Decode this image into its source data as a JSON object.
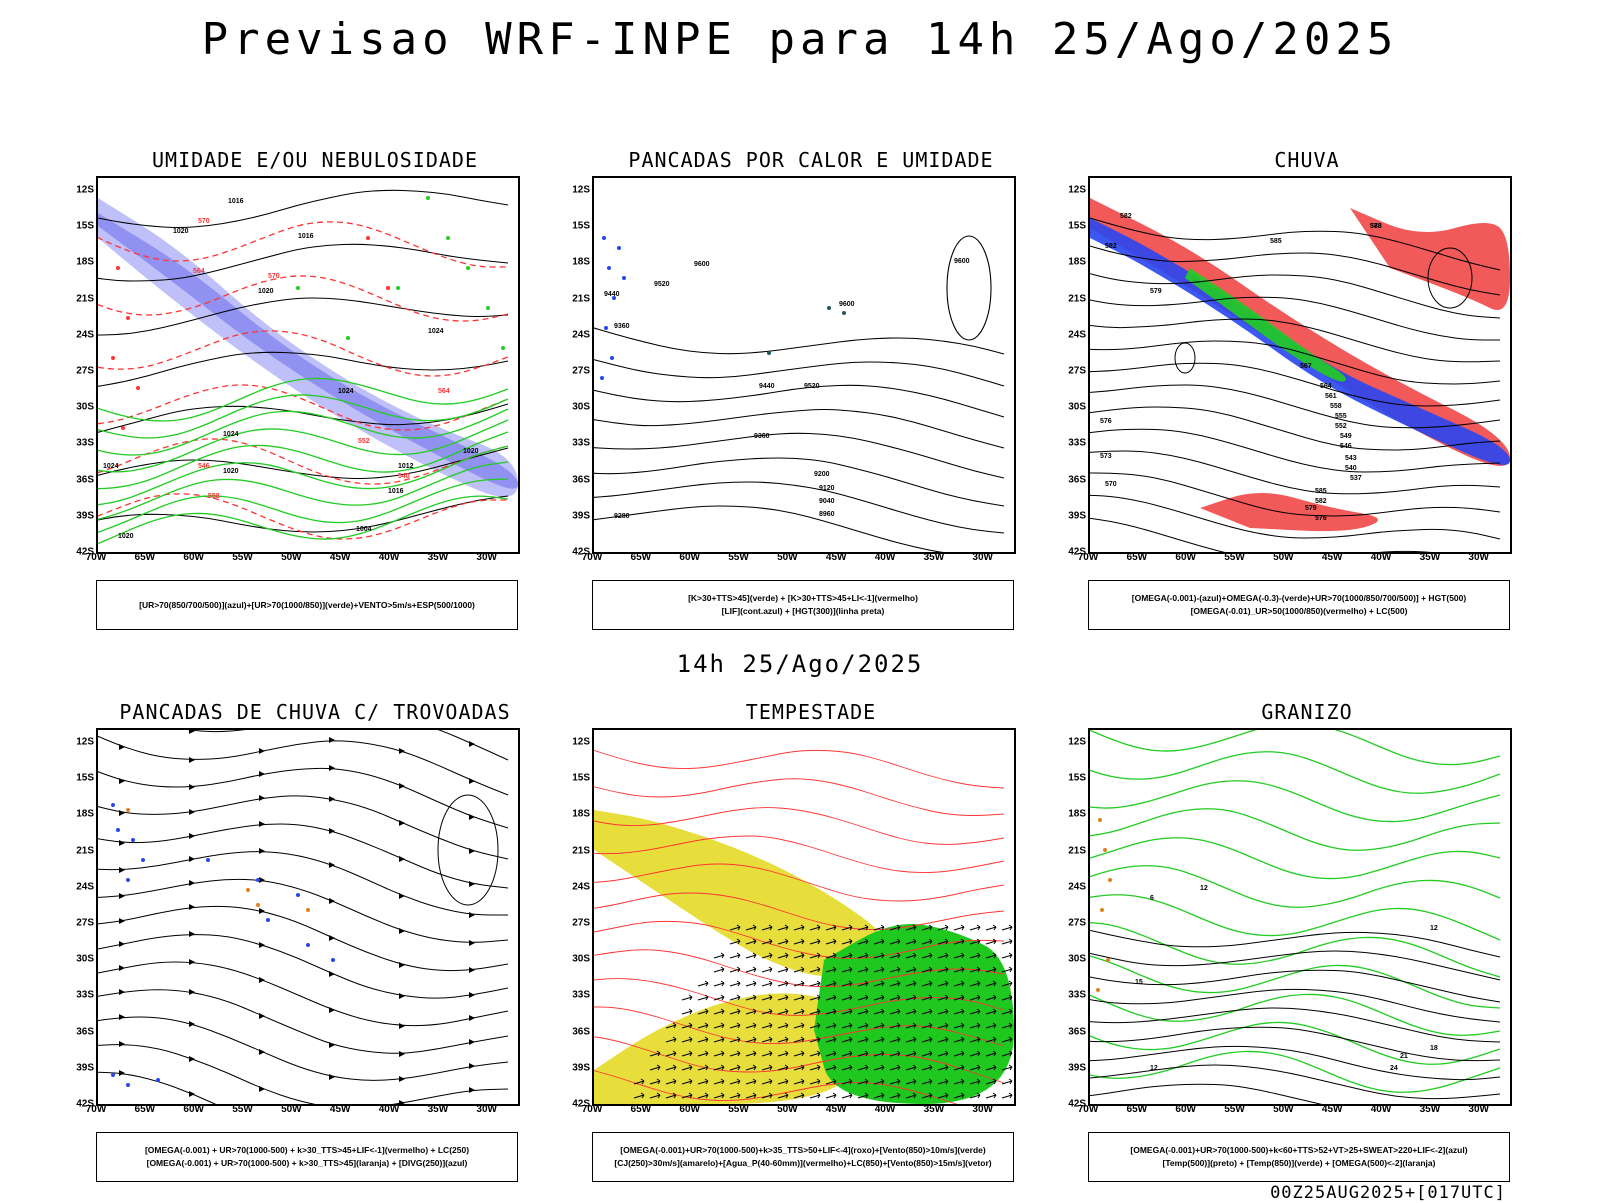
{
  "header": {
    "title": "Previsao WRF-INPE  para 14h 25/Ago/2025"
  },
  "middle_date": "14h 25/Ago/2025",
  "footer": {
    "stamp": "00Z25AUG2025+[017UTC]"
  },
  "axes": {
    "lat": [
      "12S",
      "15S",
      "18S",
      "21S",
      "24S",
      "27S",
      "30S",
      "33S",
      "36S",
      "39S",
      "42S"
    ],
    "lon": [
      "70W",
      "65W",
      "60W",
      "55W",
      "50W",
      "45W",
      "40W",
      "35W",
      "30W"
    ]
  },
  "panels": [
    {
      "id": "umidade",
      "title": "UMIDADE E/OU NEBULOSIDADE",
      "legend": [
        "[UR>70(850/700/500)](azul)+[UR>70(1000/850)](verde)+VENTO>5m/s+ESP(500/1000)"
      ],
      "labels": [
        "1016",
        "1020",
        "1016",
        "1020",
        "1024",
        "1024",
        "1020",
        "1024",
        "1020",
        "1016",
        "1012",
        "1004",
        "1024",
        "1020",
        "570",
        "564",
        "570",
        "564",
        "552",
        "546",
        "540",
        "558"
      ]
    },
    {
      "id": "pancadas-calor",
      "title": "PANCADAS POR CALOR E UMIDADE",
      "legend": [
        "[K>30+TTS>45](verde) + [K>30+TTS>45+LI<-1](vermelho)",
        "[LIF](cont.azul) + [HGT(300)](linha preta)"
      ],
      "labels": [
        "9600",
        "9600",
        "9520",
        "9440",
        "9360",
        "9600",
        "9520",
        "9440",
        "9360",
        "9200",
        "9120",
        "9040",
        "8960",
        "9280"
      ]
    },
    {
      "id": "chuva",
      "title": "CHUVA",
      "legend": [
        "[OMEGA(-0.001)-(azul)+OMEGA(-0.3)-(verde)+UR>70(1000/850/700/500)] + HGT(500)",
        "[OMEGA(-0.01)_UR>50(1000/850)(vermelho) + LC(500)"
      ],
      "labels": [
        "582",
        "588",
        "585",
        "582",
        "579",
        "576",
        "573",
        "570",
        "567",
        "564",
        "561",
        "558",
        "555",
        "552",
        "549",
        "546",
        "543",
        "540",
        "537",
        "585",
        "582",
        "579",
        "576",
        "573"
      ]
    },
    {
      "id": "trovoadas",
      "title": "PANCADAS DE CHUVA C/ TROVOADAS",
      "legend": [
        "[OMEGA(-0.001) + UR>70(1000-500) + k>30_TTS>45+LIF<-1](vermelho) + LC(250)",
        "[OMEGA(-0.001) + UR>70(1000-500) + k>30_TTS>45](laranja) + [DIVG(250)](azul)"
      ],
      "labels": []
    },
    {
      "id": "tempestade",
      "title": "TEMPESTADE",
      "legend": [
        "[OMEGA(-0.001)+UR>70(1000-500)+k>35_TTS>50+LIF<-4](roxo)+[Vento(850)>10m/s](verde)",
        "[CJ(250)>30m/s](amarelo)+[Agua_P(40-60mm)](vermelho)+LC(850)+[Vento(850)>15m/s](vetor)"
      ],
      "labels": []
    },
    {
      "id": "granizo",
      "title": "GRANIZO",
      "legend": [
        "[OMEGA(-0.001)+UR>70(1000-500)+k<60+TTS>52+VT>25+SWEAT>220+LIF<-2](azul)",
        "[Temp(500)](preto) + [Temp(850)](verde) + [OMEGA(500)<-2](laranja)"
      ],
      "labels": [
        "12",
        "6",
        "12",
        "15",
        "18",
        "21",
        "24",
        "12"
      ]
    }
  ],
  "colors": {
    "humidity_blue": "#8c8cf0",
    "humidity_light": "#b8b8f8",
    "green": "#22cc22",
    "red_dash": "#ff3333",
    "rain_red": "#f03c3c",
    "rain_blue": "#2846f0",
    "jet_yellow": "#e6dc32",
    "wind_green": "#1ec81e",
    "orange": "#e08020",
    "outline": "#000000"
  }
}
